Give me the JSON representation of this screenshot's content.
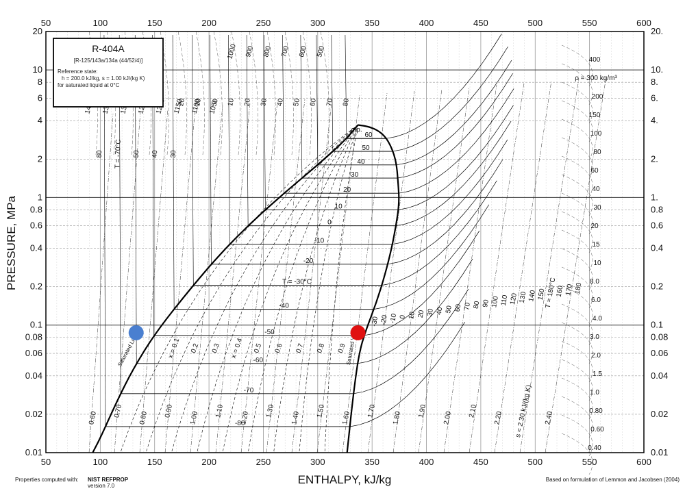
{
  "chart_data": {
    "type": "diagram",
    "xlabel": "ENTHALPY, kJ/kg",
    "ylabel": "PRESSURE, MPa",
    "xlim": [
      50,
      600
    ],
    "ylim": [
      0.01,
      20
    ],
    "yscale": "log",
    "grid": true,
    "x_ticks": [
      "50",
      "100",
      "150",
      "200",
      "250",
      "300",
      "350",
      "400",
      "450",
      "500",
      "550",
      "600"
    ],
    "x_tick_values": [
      50,
      100,
      150,
      200,
      250,
      300,
      350,
      400,
      450,
      500,
      550,
      600
    ],
    "y_ticks_left": [
      "0.01",
      "0.02",
      "0.04",
      "0.06",
      "0.08",
      "0.1",
      "0.2",
      "0.4",
      "0.6",
      "0.8",
      "1",
      "2",
      "4",
      "6",
      "8",
      "10",
      "20"
    ],
    "y_ticks_right": [
      "0.01",
      "0.02",
      "0.04",
      "0.06",
      "0.08",
      "0.1",
      "0.2",
      "0.4",
      "0.6",
      "0.8",
      "1.",
      "2.",
      "4.",
      "6.",
      "8.",
      "10.",
      "20."
    ],
    "y_tick_values": [
      0.01,
      0.02,
      0.04,
      0.06,
      0.08,
      0.1,
      0.2,
      0.4,
      0.6,
      0.8,
      1,
      2,
      4,
      6,
      8,
      10,
      20
    ],
    "legend": {
      "title": "R-404A",
      "line1": "[R-125/143a/134a (44/52/4)]",
      "line2": "Reference state:",
      "line3": "h = 200.0 kJ/kg, s = 1.00 kJ/(kg K)",
      "line4": "for saturated liquid at 0°C"
    },
    "footer_left_1": "Properties computed with:",
    "footer_left_2": "NIST REFPROP",
    "footer_left_3": "version 7.0",
    "footer_right": "Based on formulation of Lemmon and Jacobsen (2004)",
    "critical_point_label": "c.p.",
    "saturated_liquid_label": "Saturated Liquid",
    "saturated_vapor_label": "Saturated Vapor",
    "saturation_dome": {
      "liquid_h": [
        93,
        100,
        115,
        130,
        150,
        180,
        210,
        240,
        270,
        300,
        325,
        337
      ],
      "liquid_p": [
        0.01,
        0.013,
        0.025,
        0.045,
        0.085,
        0.18,
        0.36,
        0.65,
        1.1,
        1.8,
        2.8,
        3.7
      ],
      "vapor_h": [
        337,
        347,
        357,
        365,
        372,
        374,
        375,
        372,
        368,
        362,
        354,
        344,
        338,
        333,
        327
      ],
      "vapor_p": [
        3.7,
        3.6,
        3.3,
        2.8,
        2.0,
        1.3,
        0.9,
        0.6,
        0.4,
        0.25,
        0.15,
        0.09,
        0.06,
        0.03,
        0.01
      ]
    },
    "isotherms_in_dome": [
      {
        "label": "60",
        "t": 60
      },
      {
        "label": "50",
        "t": 50
      },
      {
        "label": "40",
        "t": 40
      },
      {
        "label": "30",
        "t": 30
      },
      {
        "label": "20",
        "t": 20
      },
      {
        "label": "10",
        "t": 10
      },
      {
        "label": "0",
        "t": 0
      },
      {
        "label": "-10",
        "t": -10
      },
      {
        "label": "-20",
        "t": -20
      },
      {
        "label": "T = -30°C",
        "t": -30
      },
      {
        "label": "-40",
        "t": -40
      },
      {
        "label": "-50",
        "t": -50
      },
      {
        "label": "-60",
        "t": -60
      },
      {
        "label": "-70",
        "t": -70
      },
      {
        "label": "-80",
        "t": -80
      }
    ],
    "quality_lines": [
      "x = 0.1",
      "0.2",
      "0.3",
      "x = 0.4",
      "0.5",
      "0.6",
      "0.7",
      "0.8",
      "0.9"
    ],
    "entropy_lines": [
      "0.60",
      "0.70",
      "0.80",
      "0.90",
      "1.00",
      "1.10",
      "1.20",
      "1.30",
      "1.40",
      "1.50",
      "1.60",
      "1.70",
      "1.80",
      "1.90",
      "2.00",
      "2.10",
      "2.20",
      "s = 2.30 kJ/(kg K)",
      "2.40"
    ],
    "density_labels": [
      "1400",
      "1350",
      "1300",
      "1250",
      "1200",
      "1150",
      "1100",
      "1050",
      "1000",
      "900",
      "800",
      "700",
      "600",
      "500",
      "400",
      "ρ = 300 kg/m³",
      "200",
      "150",
      "100",
      "80",
      "60",
      "40",
      "30",
      "20",
      "15",
      "10",
      "8.0",
      "6.0",
      "4.0",
      "3.0",
      "2.0",
      "1.5",
      "1.0",
      "0.80",
      "0.60",
      "0.40"
    ],
    "left_temp_labels": [
      "80",
      "T = -70°C",
      "50",
      "40",
      "30"
    ],
    "top_temp_labels": [
      "20",
      "10",
      "0",
      "10",
      "20",
      "30",
      "40",
      "50",
      "60",
      "70",
      "80"
    ],
    "vapor_temp_labels": [
      "-30",
      "-20",
      "-10",
      "0",
      "10",
      "20",
      "30",
      "40",
      "50",
      "60",
      "70",
      "80",
      "90",
      "100",
      "110",
      "120",
      "130",
      "140",
      "150",
      "T = 180°C",
      "160",
      "170",
      "180"
    ],
    "points": [
      {
        "name": "blue-point",
        "h": 133,
        "p": 0.087,
        "color": "#4a7fd0"
      },
      {
        "name": "red-point",
        "h": 337,
        "p": 0.087,
        "color": "#e01010"
      }
    ]
  }
}
